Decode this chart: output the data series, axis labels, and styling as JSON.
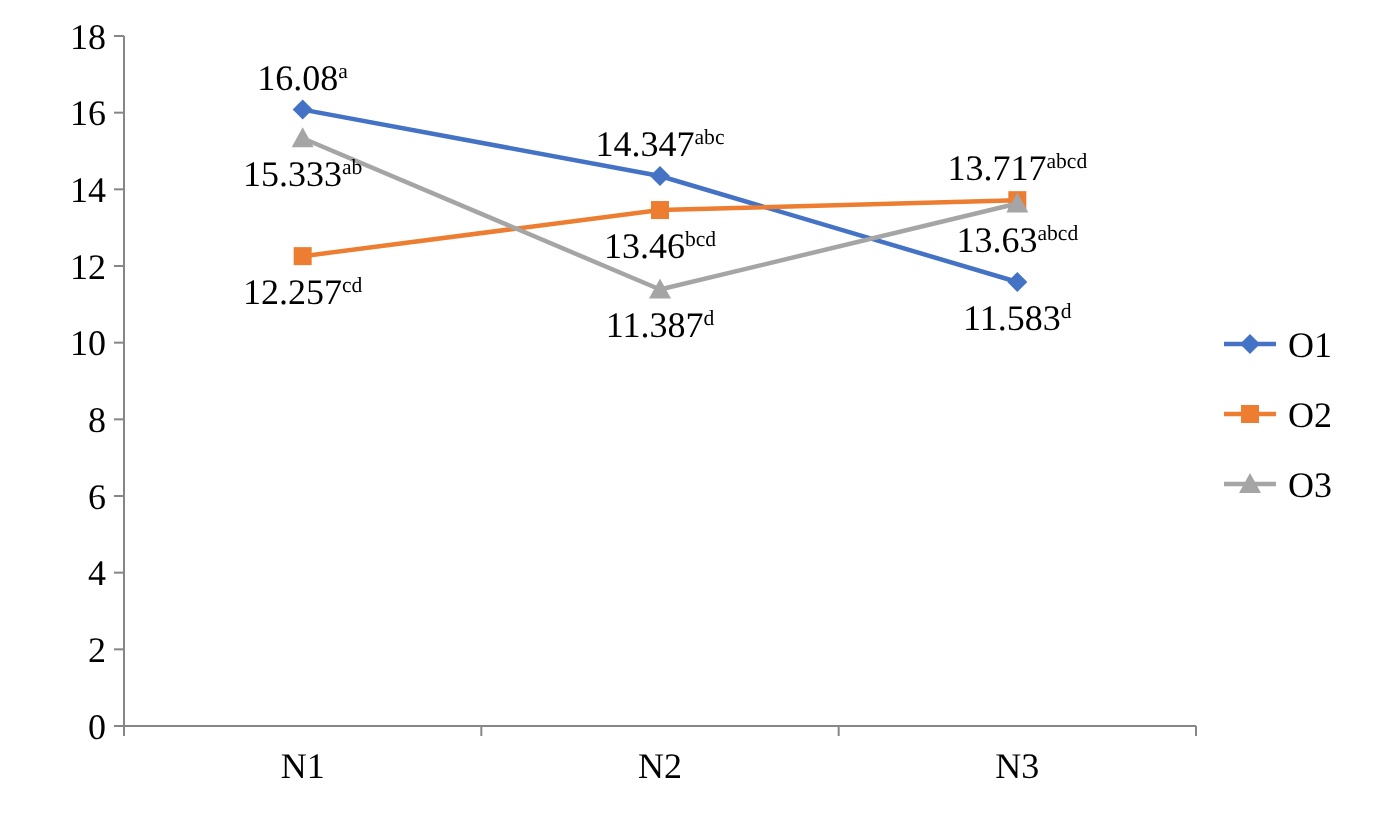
{
  "chart_data": {
    "type": "line",
    "categories": [
      "N1",
      "N2",
      "N3"
    ],
    "series": [
      {
        "name": "O1",
        "color": "#4472c4",
        "marker": "diamond",
        "values": [
          16.08,
          14.347,
          11.583
        ],
        "value_labels": [
          "16.08$^{a}$",
          "14.347$^{abc}$",
          "11.583$^{d}$"
        ]
      },
      {
        "name": "O2",
        "color": "#ed7d31",
        "marker": "square",
        "values": [
          12.257,
          13.46,
          13.717
        ],
        "value_labels": [
          "12.257$^{cd}$",
          "13.46$^{bcd}$",
          "13.717$^{abcd}$"
        ]
      },
      {
        "name": "O3",
        "color": "#a5a5a5",
        "marker": "triangle",
        "values": [
          15.333,
          11.387,
          13.63
        ],
        "value_labels": [
          "15.333$^{ab}$",
          "11.387$^{d}$",
          "13.63$^{abcd}$"
        ]
      }
    ],
    "ylim": [
      0,
      18
    ],
    "yticks": [
      0,
      2,
      4,
      6,
      8,
      10,
      12,
      14,
      16,
      18
    ],
    "grid": false,
    "legend": "right"
  }
}
